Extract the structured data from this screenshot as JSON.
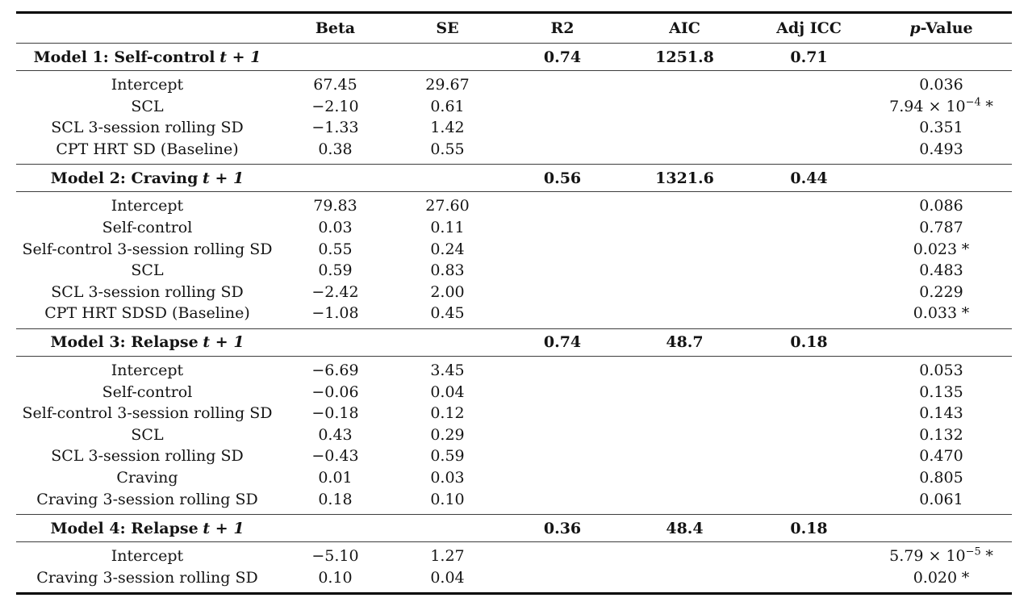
{
  "table": {
    "header": {
      "predictor": "",
      "beta": "Beta",
      "se": "SE",
      "r2": "R2",
      "aic": "AIC",
      "adj_icc": "Adj ICC",
      "p_italic": "p",
      "p_rest": "-Value"
    },
    "sections": [
      {
        "title": "Model 1: Self-control",
        "title_tail": "t + 1",
        "r2": "0.74",
        "aic": "1251.8",
        "adj_icc": "0.71",
        "rows": [
          {
            "predictor": "Intercept",
            "beta": "67.45",
            "se": "29.67",
            "p": "0.036",
            "p_exp": "",
            "p_star": ""
          },
          {
            "predictor": "SCL",
            "beta": "−2.10",
            "se": "0.61",
            "p": "7.94 × 10",
            "p_exp": "−4",
            "p_star": "*"
          },
          {
            "predictor": "SCL 3-session rolling SD",
            "beta": "−1.33",
            "se": "1.42",
            "p": "0.351",
            "p_exp": "",
            "p_star": ""
          },
          {
            "predictor": "CPT HRT SD (Baseline)",
            "beta": "0.38",
            "se": "0.55",
            "p": "0.493",
            "p_exp": "",
            "p_star": ""
          }
        ]
      },
      {
        "title": "Model 2: Craving",
        "title_tail": "t + 1",
        "r2": "0.56",
        "aic": "1321.6",
        "adj_icc": "0.44",
        "rows": [
          {
            "predictor": "Intercept",
            "beta": "79.83",
            "se": "27.60",
            "p": "0.086",
            "p_exp": "",
            "p_star": ""
          },
          {
            "predictor": "Self-control",
            "beta": "0.03",
            "se": "0.11",
            "p": "0.787",
            "p_exp": "",
            "p_star": ""
          },
          {
            "predictor": "Self-control 3-session rolling SD",
            "beta": "0.55",
            "se": "0.24",
            "p": "0.023",
            "p_exp": "",
            "p_star": "*"
          },
          {
            "predictor": "SCL",
            "beta": "0.59",
            "se": "0.83",
            "p": "0.483",
            "p_exp": "",
            "p_star": ""
          },
          {
            "predictor": "SCL 3-session rolling SD",
            "beta": "−2.42",
            "se": "2.00",
            "p": "0.229",
            "p_exp": "",
            "p_star": ""
          },
          {
            "predictor": "CPT HRT SDSD (Baseline)",
            "beta": "−1.08",
            "se": "0.45",
            "p": "0.033",
            "p_exp": "",
            "p_star": "*"
          }
        ]
      },
      {
        "title": "Model 3: Relapse",
        "title_tail": "t + 1",
        "r2": "0.74",
        "aic": "48.7",
        "adj_icc": "0.18",
        "rows": [
          {
            "predictor": "Intercept",
            "beta": "−6.69",
            "se": "3.45",
            "p": "0.053",
            "p_exp": "",
            "p_star": ""
          },
          {
            "predictor": "Self-control",
            "beta": "−0.06",
            "se": "0.04",
            "p": "0.135",
            "p_exp": "",
            "p_star": ""
          },
          {
            "predictor": "Self-control 3-session rolling SD",
            "beta": "−0.18",
            "se": "0.12",
            "p": "0.143",
            "p_exp": "",
            "p_star": ""
          },
          {
            "predictor": "SCL",
            "beta": "0.43",
            "se": "0.29",
            "p": "0.132",
            "p_exp": "",
            "p_star": ""
          },
          {
            "predictor": "SCL 3-session rolling SD",
            "beta": "−0.43",
            "se": "0.59",
            "p": "0.470",
            "p_exp": "",
            "p_star": ""
          },
          {
            "predictor": "Craving",
            "beta": "0.01",
            "se": "0.03",
            "p": "0.805",
            "p_exp": "",
            "p_star": ""
          },
          {
            "predictor": "Craving 3-session rolling SD",
            "beta": "0.18",
            "se": "0.10",
            "p": "0.061",
            "p_exp": "",
            "p_star": ""
          }
        ]
      },
      {
        "title": "Model 4: Relapse",
        "title_tail": "t + 1",
        "r2": "0.36",
        "aic": "48.4",
        "adj_icc": "0.18",
        "rows": [
          {
            "predictor": "Intercept",
            "beta": "−5.10",
            "se": "1.27",
            "p": "5.79 × 10",
            "p_exp": "−5",
            "p_star": "*"
          },
          {
            "predictor": "Craving 3-session rolling SD",
            "beta": "0.10",
            "se": "0.04",
            "p": "0.020",
            "p_exp": "",
            "p_star": "*"
          }
        ]
      }
    ]
  }
}
